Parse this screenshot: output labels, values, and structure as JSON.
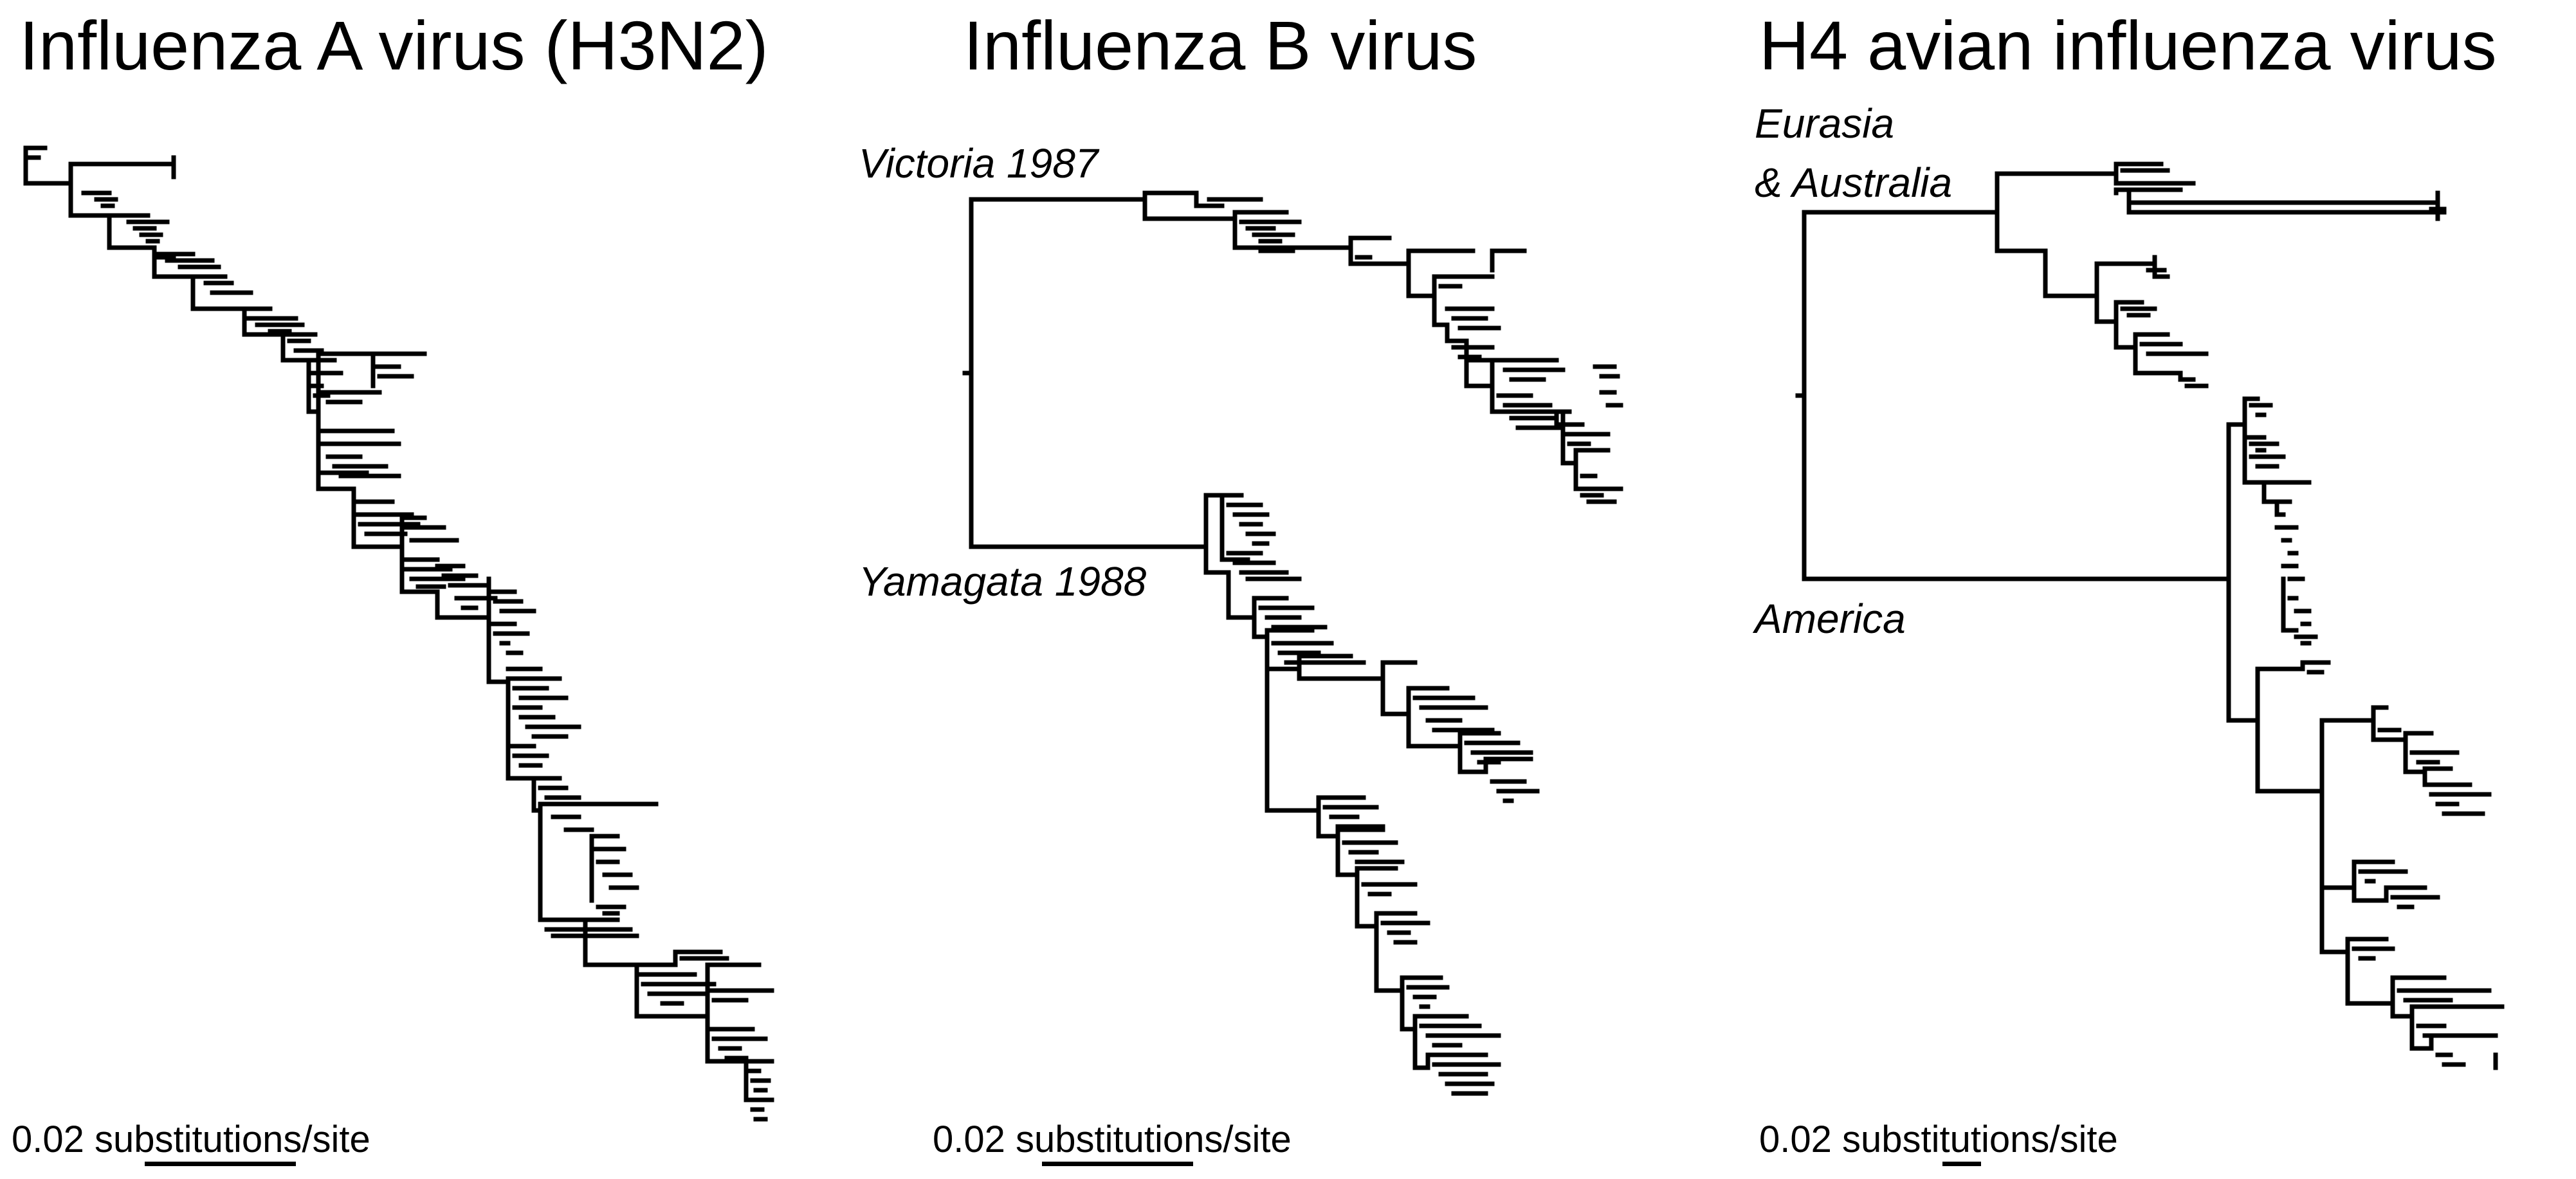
{
  "panels": [
    {
      "title": "Influenza A virus (H3N2)",
      "scale_label": "0.02 substitutions/site"
    },
    {
      "title": "Influenza B virus",
      "scale_label": "0.02 substitutions/site",
      "clades": [
        "Victoria 1987",
        "Yamagata 1988"
      ]
    },
    {
      "title": "H4 avian influenza virus",
      "scale_label": "0.02 substitutions/site",
      "clades": [
        "Eurasia",
        "& Australia",
        "America"
      ]
    }
  ],
  "colors": {
    "line": "#000000",
    "background": "#ffffff"
  }
}
